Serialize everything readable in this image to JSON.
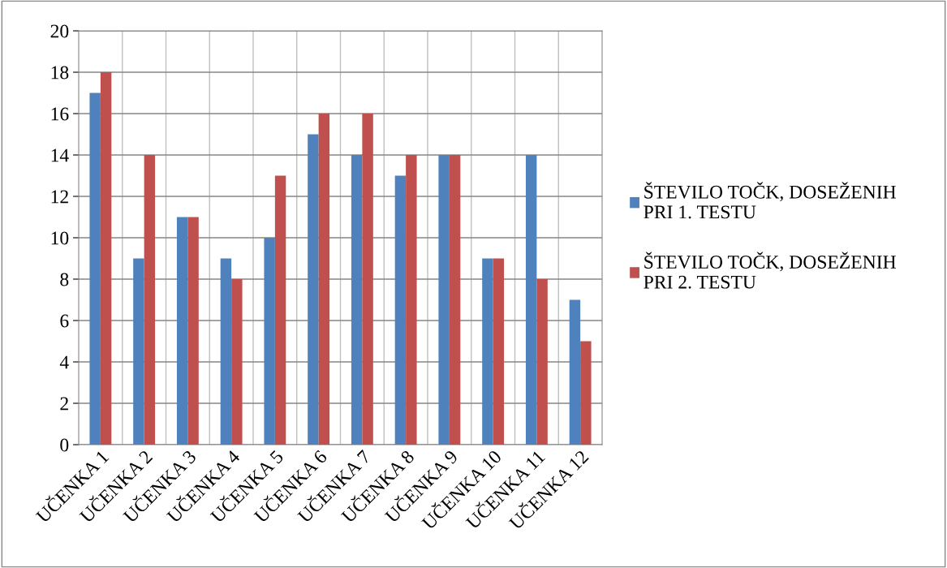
{
  "chart_data": {
    "type": "bar",
    "categories": [
      "UČENKA 1",
      "UČENKA 2",
      "UČENKA 3",
      "UČENKA 4",
      "UČENKA 5",
      "UČENKA 6",
      "UČENKA 7",
      "UČENKA 8",
      "UČENKA 9",
      "UČENKA 10",
      "UČENKA 11",
      "UČENKA 12"
    ],
    "series": [
      {
        "name": "ŠTEVILO TOČK, DOSEŽENIH PRI 1. TESTU",
        "color": "#4f81bd",
        "values": [
          17,
          9,
          11,
          9,
          10,
          15,
          14,
          13,
          14,
          9,
          14,
          7
        ]
      },
      {
        "name": "ŠTEVILO TOČK, DOSEŽENIH PRI 2. TESTU",
        "color": "#c0504d",
        "values": [
          18,
          14,
          11,
          8,
          13,
          16,
          16,
          14,
          14,
          9,
          8,
          5
        ]
      }
    ],
    "ylim": [
      0,
      20
    ],
    "yticks": [
      0,
      2,
      4,
      6,
      8,
      10,
      12,
      14,
      16,
      18,
      20
    ],
    "grid": true,
    "legend": "right"
  }
}
